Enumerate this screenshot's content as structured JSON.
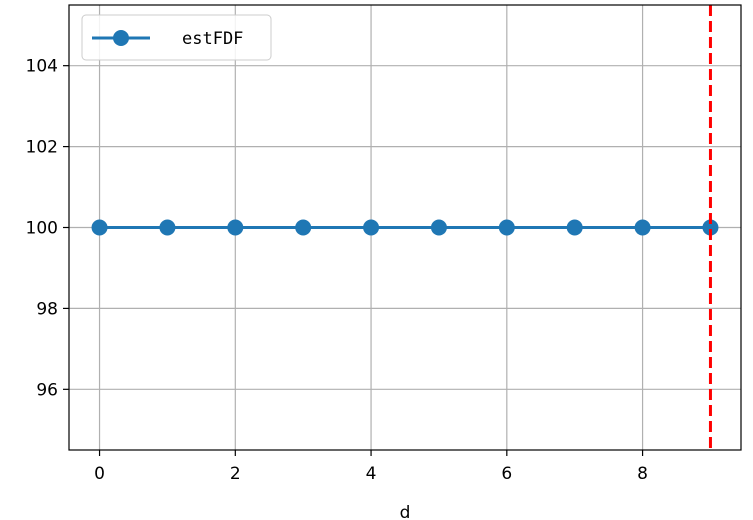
{
  "chart_data": {
    "type": "line",
    "title": "",
    "xlabel": "d",
    "ylabel": "",
    "x": [
      0,
      1,
      2,
      3,
      4,
      5,
      6,
      7,
      8,
      9
    ],
    "series": [
      {
        "name": "estFDF",
        "values": [
          100,
          100,
          100,
          100,
          100,
          100,
          100,
          100,
          100,
          100
        ],
        "color": "#1f77b4",
        "marker": "circle"
      }
    ],
    "xlim": [
      -0.45,
      9.45
    ],
    "ylim": [
      94.5,
      105.5
    ],
    "xticks": [
      "0",
      "2",
      "4",
      "6",
      "8"
    ],
    "yticks": [
      "96",
      "98",
      "100",
      "102",
      "104"
    ],
    "grid": true,
    "legend_position": "top-left",
    "vline": {
      "x": 9,
      "color": "#ff0000",
      "style": "dashed"
    }
  }
}
